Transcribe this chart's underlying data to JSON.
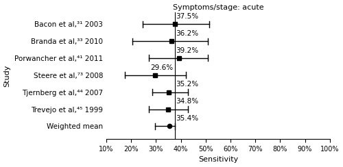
{
  "title": "Symptoms/stage: acute",
  "xlabel": "Sensitivity",
  "ylabel": "Study",
  "xlim": [
    0.1,
    1.0
  ],
  "xticks": [
    0.1,
    0.2,
    0.3,
    0.4,
    0.5,
    0.6,
    0.7,
    0.8,
    0.9,
    1.0
  ],
  "xticklabels": [
    "10%",
    "20%",
    "30%",
    "40%",
    "50%",
    "60%",
    "70%",
    "80%",
    "90%",
    "100%"
  ],
  "studies": [
    "Bacon et al,³¹ 2003",
    "Branda et al,³³ 2010",
    "Porwancher et al,⁴¹ 2011",
    "Steere et al,⁷³ 2008",
    "Tjernberg et al,⁴⁴ 2007",
    "Trevejo et al,⁴⁵ 1999",
    "Weighted mean"
  ],
  "values": [
    0.375,
    0.362,
    0.392,
    0.296,
    0.352,
    0.348,
    0.354
  ],
  "ci_low": [
    0.245,
    0.205,
    0.27,
    0.175,
    0.285,
    0.27,
    0.295
  ],
  "ci_high": [
    0.515,
    0.51,
    0.51,
    0.42,
    0.43,
    0.43,
    0.375
  ],
  "labels": [
    "37.5%",
    "36.2%",
    "39.2%",
    "29.6%",
    "35.2%",
    "34.8%",
    "35.4%"
  ],
  "label_offsets_left": [
    false,
    false,
    false,
    true,
    false,
    false,
    false
  ],
  "vline": 0.375,
  "marker_color": "black",
  "line_color": "black",
  "background_color": "#ffffff",
  "label_fontsize": 7.5,
  "tick_fontsize": 7,
  "study_fontsize": 7.5,
  "title_fontsize": 8,
  "ylabel_fontsize": 8,
  "xlabel_fontsize": 8
}
